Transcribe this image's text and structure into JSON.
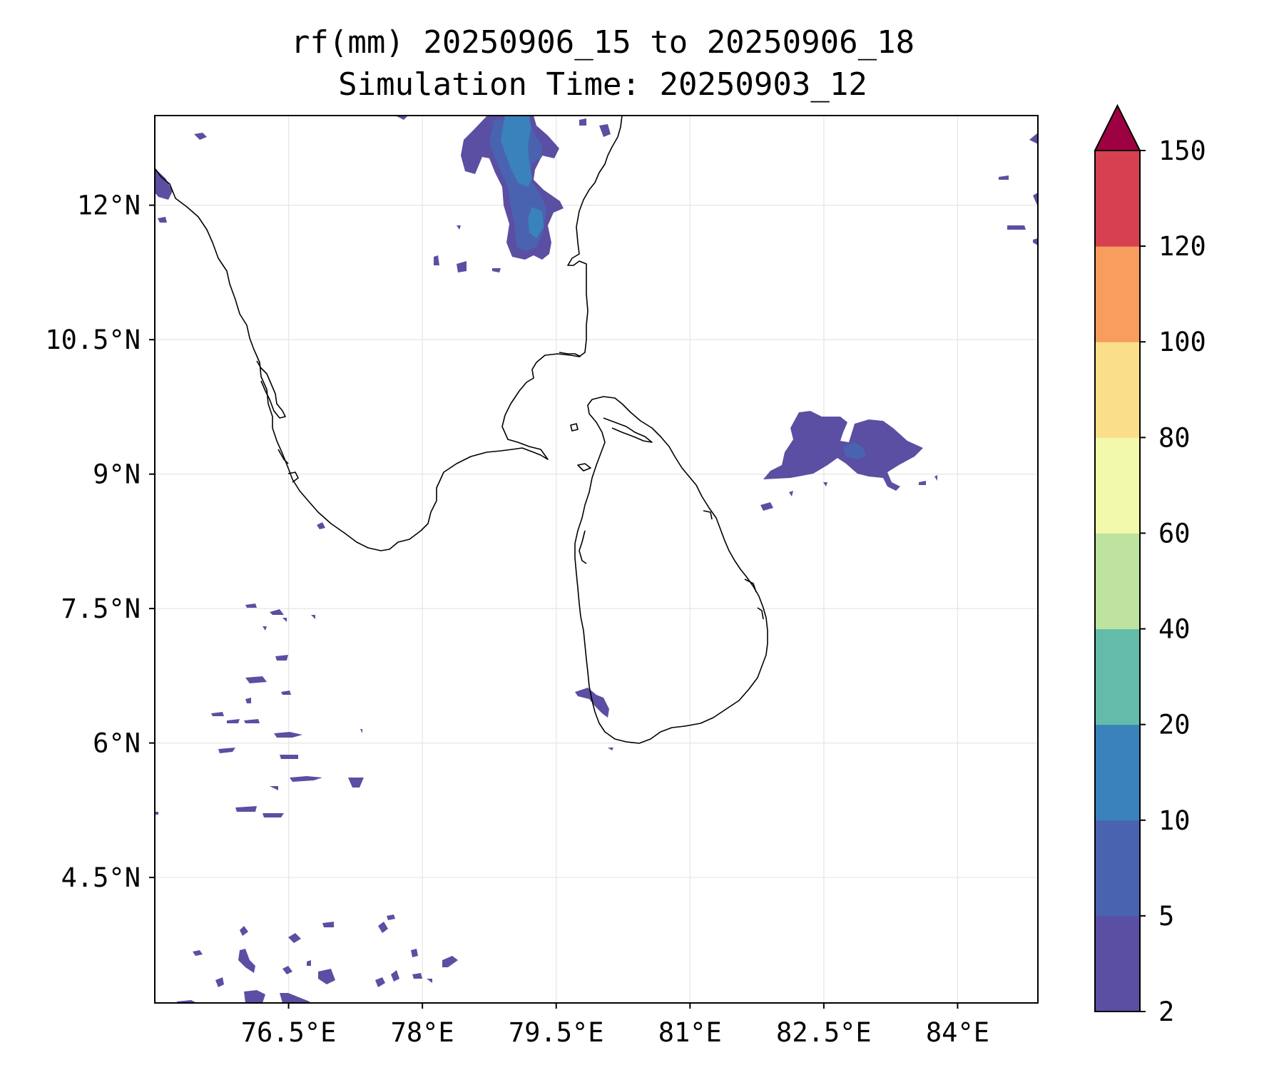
{
  "title": {
    "line1": "rf(mm) 20250906_15 to 20250906_18",
    "line2": "Simulation Time: 20250903_12"
  },
  "axes": {
    "x_ticks": [
      {
        "value": 76.5,
        "label": "76.5°E"
      },
      {
        "value": 78.0,
        "label": "78°E"
      },
      {
        "value": 79.5,
        "label": "79.5°E"
      },
      {
        "value": 81.0,
        "label": "81°E"
      },
      {
        "value": 82.5,
        "label": "82.5°E"
      },
      {
        "value": 84.0,
        "label": "84°E"
      }
    ],
    "y_ticks": [
      {
        "value": 12.0,
        "label": "12°N"
      },
      {
        "value": 10.5,
        "label": "10.5°N"
      },
      {
        "value": 9.0,
        "label": "9°N"
      },
      {
        "value": 7.5,
        "label": "7.5°N"
      },
      {
        "value": 6.0,
        "label": "6°N"
      },
      {
        "value": 4.5,
        "label": "4.5°N"
      }
    ],
    "lon_range": [
      75.0,
      84.9
    ],
    "lat_range": [
      3.1,
      13.0
    ],
    "grid": true
  },
  "colorbar": {
    "extend": "max",
    "levels": [
      {
        "label": "2",
        "color": "#5a4fa2"
      },
      {
        "label": "5",
        "color": "#4a63b0"
      },
      {
        "label": "10",
        "color": "#3a82bb"
      },
      {
        "label": "20",
        "color": "#62bca9"
      },
      {
        "label": "40",
        "color": "#bde39f"
      },
      {
        "label": "60",
        "color": "#f2f9ab"
      },
      {
        "label": "80",
        "color": "#fbdf88"
      },
      {
        "label": "100",
        "color": "#f89d5d"
      },
      {
        "label": "120",
        "color": "#d6404f"
      },
      {
        "label": "150",
        "color": "#9e0142"
      }
    ]
  },
  "colors": {
    "rain_2_5": "#5a4fa2",
    "rain_5_10": "#4a63b0",
    "rain_10_20": "#3a82bb",
    "coastline": "#000000"
  }
}
